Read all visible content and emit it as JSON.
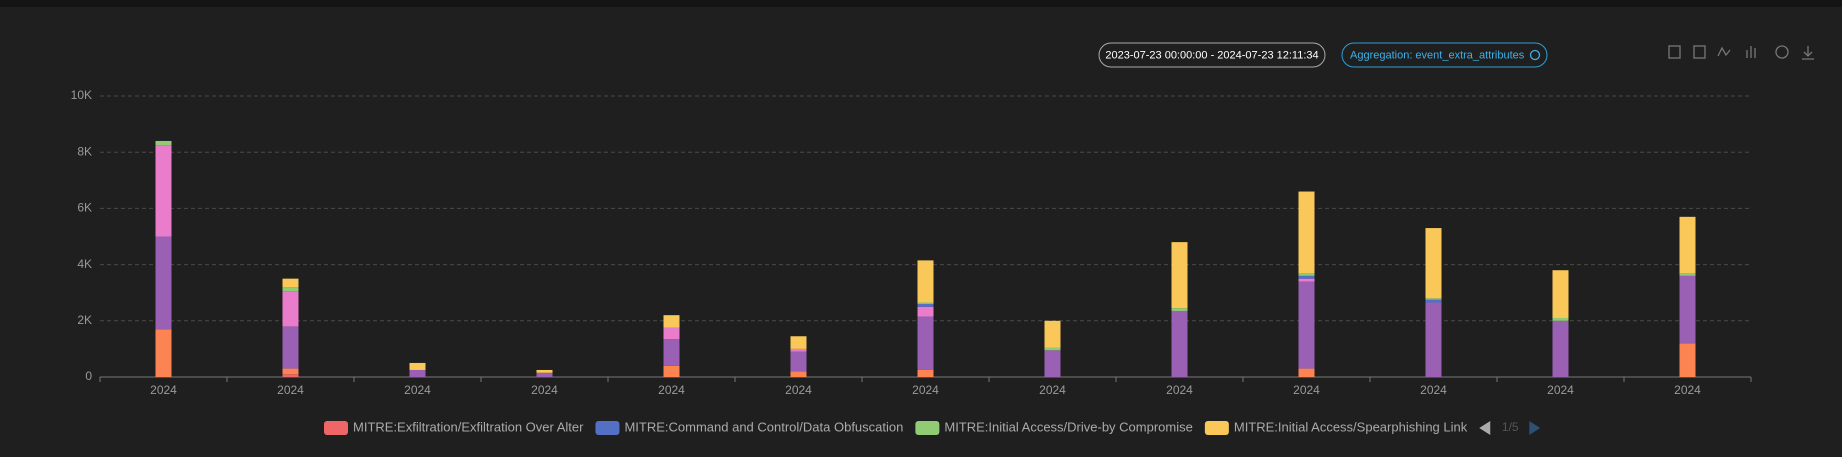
{
  "toolbar": {
    "date_range": "2023-07-23 00:00:00 - 2024-07-23 12:11:34",
    "aggregation": "Aggregation: event_extra_attributes"
  },
  "chart_data": {
    "type": "bar",
    "stacked": true,
    "grid": true,
    "categories": [
      "2024",
      "2024",
      "2024",
      "2024",
      "2024",
      "2024",
      "2024",
      "2024",
      "2024",
      "2024",
      "2024",
      "2024",
      "2024"
    ],
    "ylim": [
      0,
      10000
    ],
    "yticks": [
      0,
      {
        "value": 2000,
        "label": "2K"
      },
      {
        "value": 4000,
        "label": "4K"
      },
      {
        "value": 6000,
        "label": "6K"
      },
      {
        "value": 8000,
        "label": "8K"
      },
      {
        "value": 10000,
        "label": "10K"
      }
    ],
    "series": [
      {
        "name": "MITRE:Exfiltration/Exfiltration Over Alter",
        "color": "#ee6666",
        "values": [
          0,
          100,
          0,
          0,
          0,
          0,
          0,
          0,
          0,
          0,
          0,
          0,
          0
        ]
      },
      {
        "color": "#fc8452",
        "values": [
          1700,
          200,
          0,
          0,
          400,
          200,
          250,
          0,
          0,
          300,
          0,
          0,
          1200
        ]
      },
      {
        "color": "#9a60b4",
        "values": [
          3300,
          1500,
          250,
          150,
          950,
          700,
          1900,
          950,
          2350,
          3100,
          2650,
          2000,
          2400
        ]
      },
      {
        "color": "#ea7ccc",
        "values": [
          3250,
          1250,
          0,
          0,
          400,
          100,
          350,
          0,
          0,
          100,
          0,
          0,
          0
        ]
      },
      {
        "name": "MITRE:Command and Control/Data Obfuscation",
        "color": "#5470c6",
        "values": [
          0,
          0,
          0,
          0,
          0,
          0,
          100,
          0,
          0,
          100,
          100,
          0,
          0
        ]
      },
      {
        "name": "MITRE:Initial Access/Drive-by Compromise",
        "color": "#91cc75",
        "values": [
          150,
          150,
          0,
          0,
          0,
          0,
          50,
          100,
          100,
          100,
          50,
          100,
          100
        ]
      },
      {
        "name": "MITRE:Initial Access/Spearphishing Link",
        "color": "#fac858",
        "values": [
          0,
          300,
          250,
          100,
          450,
          450,
          1500,
          950,
          2350,
          2900,
          2500,
          1700,
          2000
        ]
      }
    ],
    "legend_page": "1/5"
  }
}
